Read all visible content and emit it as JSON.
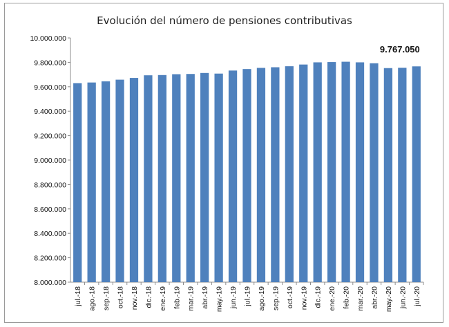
{
  "chart_data": {
    "type": "bar",
    "title": "Evolución del número de pensiones contributivas",
    "xlabel": "",
    "ylabel": "",
    "ylim": [
      8000000,
      10000000
    ],
    "yticks": [
      8000000,
      8200000,
      8400000,
      8600000,
      8800000,
      9000000,
      9200000,
      9400000,
      9600000,
      9800000,
      10000000
    ],
    "ytick_labels": [
      "8.000.000",
      "8.200.000",
      "8.400.000",
      "8.600.000",
      "8.800.000",
      "9.000.000",
      "9.200.000",
      "9.400.000",
      "9.600.000",
      "9.800.000",
      "10.000.000"
    ],
    "categories": [
      "jul.-18",
      "ago.-18",
      "sep.-18",
      "oct.-18",
      "nov.-18",
      "dic.-18",
      "ene.-19",
      "feb.-19",
      "mar.-19",
      "abr.-19",
      "may.-19",
      "jun.-19",
      "jul.-19",
      "ago.-19",
      "sep.-19",
      "oct.-19",
      "nov.-19",
      "dic.-19",
      "ene.-20",
      "feb.-20",
      "mar.-20",
      "abr.-20",
      "may.-20",
      "jun.-20",
      "jul.-20"
    ],
    "values": [
      9630000,
      9635000,
      9645000,
      9658000,
      9672000,
      9694000,
      9696000,
      9703000,
      9705000,
      9713000,
      9708000,
      9733000,
      9745000,
      9755000,
      9760000,
      9768000,
      9782000,
      9800000,
      9802000,
      9805000,
      9800000,
      9793000,
      9753000,
      9756000,
      9767050
    ],
    "annotation": "9.767.050",
    "bar_color": "#4f81bd",
    "grid": false,
    "legend": "none"
  }
}
